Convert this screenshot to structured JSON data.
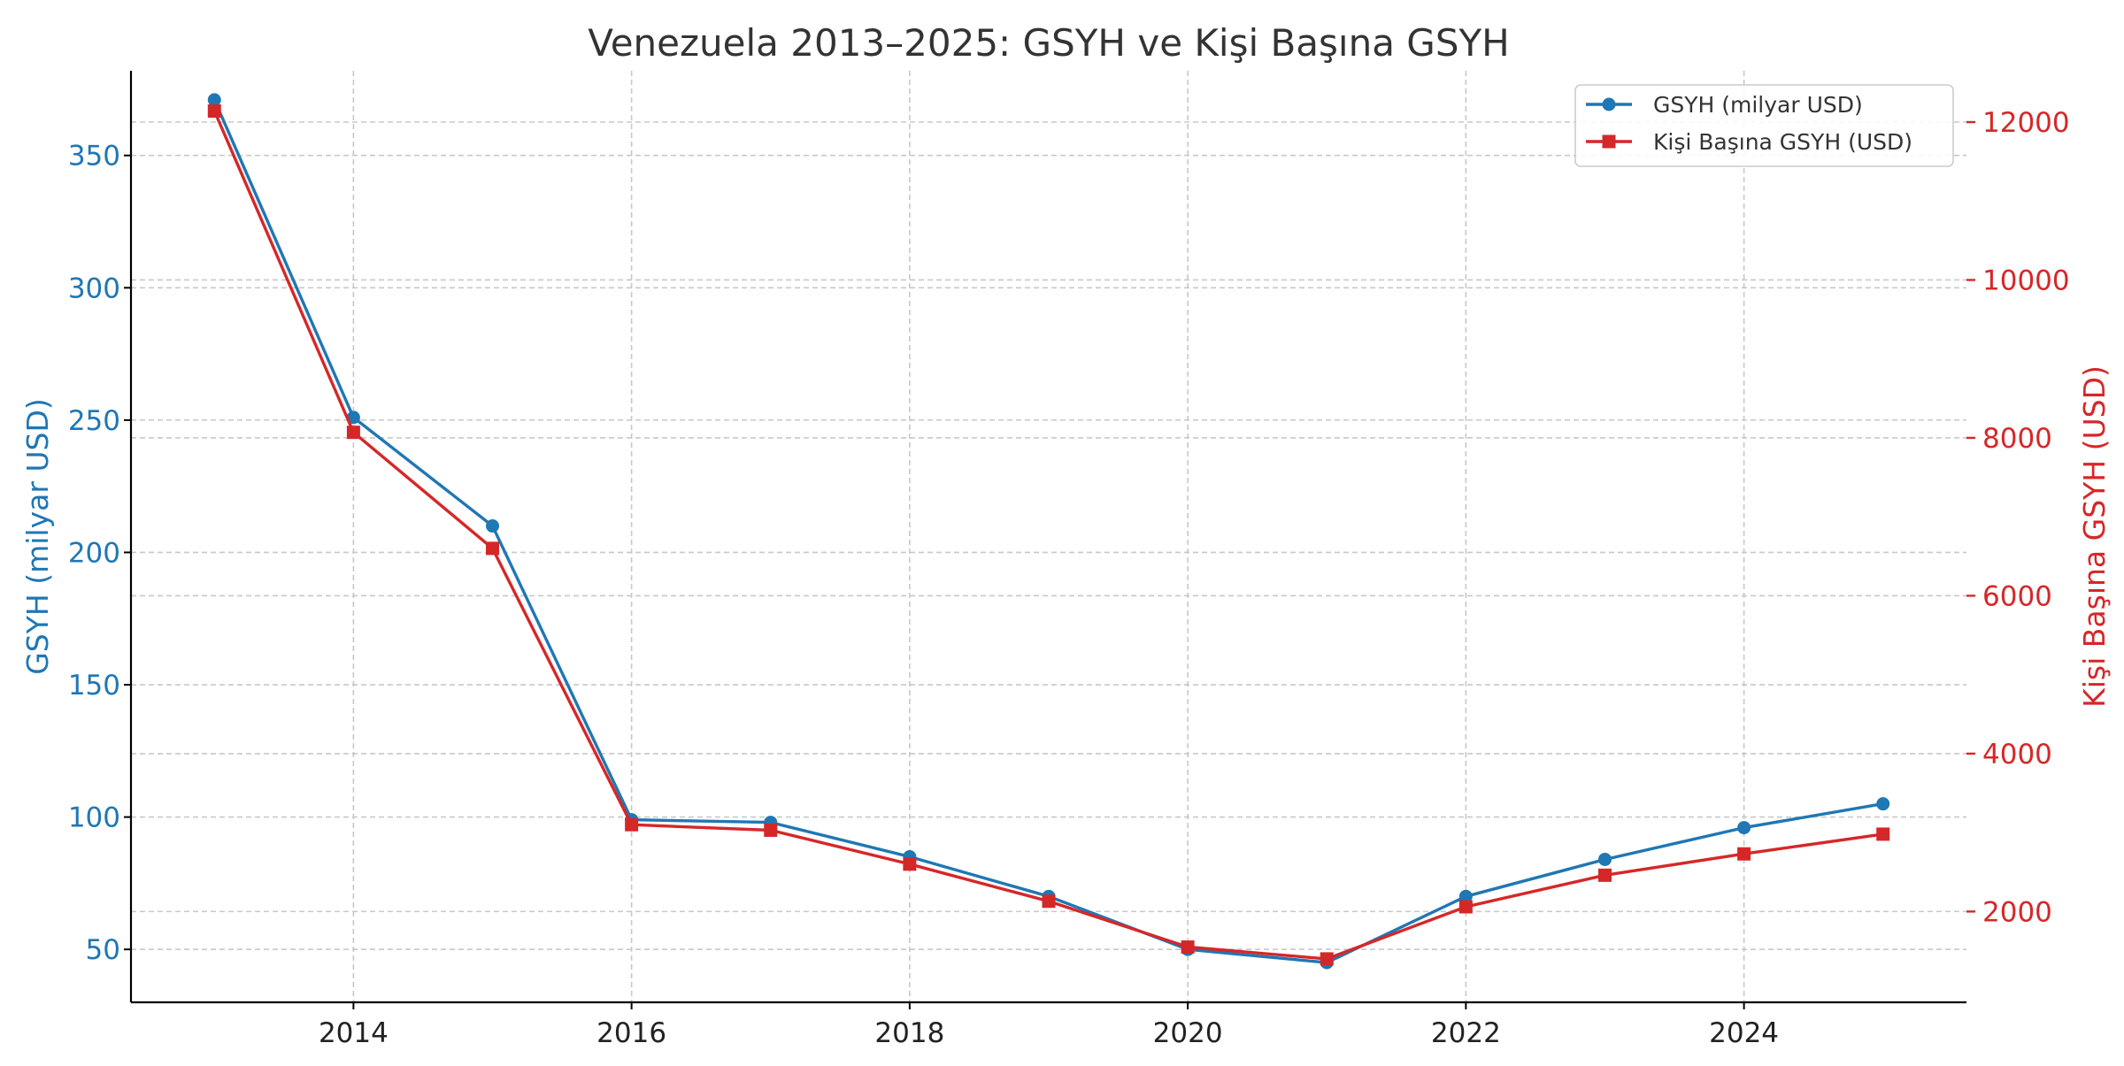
{
  "chart_data": {
    "type": "line",
    "title": "Venezuela 2013–2025: GSYH ve Kişi Başına GSYH",
    "xlabel": "",
    "x": [
      2013,
      2014,
      2015,
      2016,
      2017,
      2018,
      2019,
      2020,
      2021,
      2022,
      2023,
      2024,
      2025
    ],
    "x_ticks": [
      2014,
      2016,
      2018,
      2020,
      2022,
      2024
    ],
    "xlim": [
      2012.4,
      2025.6
    ],
    "series": [
      {
        "name": "GSYH (milyar USD)",
        "axis": "left",
        "color": "#1f77b4",
        "marker": "circle",
        "values": [
          371,
          251,
          210,
          99,
          98,
          85,
          70,
          50,
          45,
          70,
          84,
          96,
          105
        ]
      },
      {
        "name": "Kişi Başına GSYH (USD)",
        "axis": "right",
        "color": "#d62728",
        "marker": "square",
        "values": [
          12140,
          8070,
          6600,
          3100,
          3030,
          2600,
          2130,
          1550,
          1400,
          2060,
          2460,
          2730,
          2980
        ]
      }
    ],
    "y_left": {
      "label": "GSYH (milyar USD)",
      "ticks": [
        50,
        100,
        150,
        200,
        250,
        300,
        350
      ],
      "lim": [
        30,
        382
      ]
    },
    "y_right": {
      "label": "Kişi Başına GSYH (USD)",
      "ticks": [
        2000,
        4000,
        6000,
        8000,
        10000,
        12000
      ],
      "lim": [
        850,
        12650
      ]
    },
    "grid": true,
    "legend_position": "top-right"
  }
}
